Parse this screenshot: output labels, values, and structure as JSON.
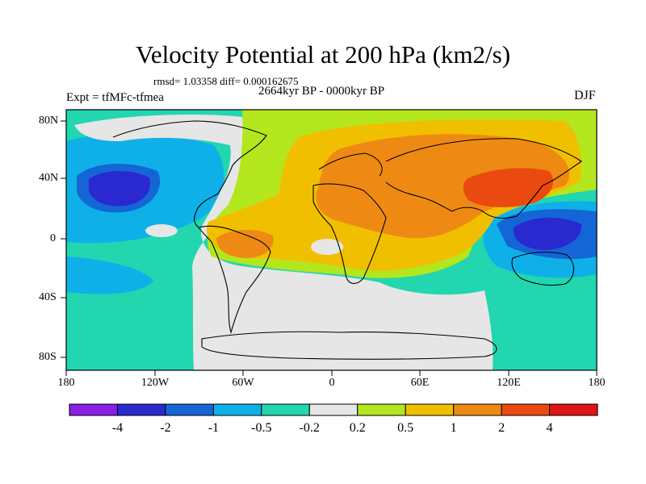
{
  "title": "Velocity Potential at 200 hPa (km2/s)",
  "stats_line": "rmsd= 1.03358 diff= 0.000162675",
  "period_line": "2664kyr BP - 0000kyr BP",
  "experiment_line": "Expt = tfMFc-tfmea",
  "season_label": "DJF",
  "map": {
    "lon_ticks": [
      "180",
      "120W",
      "60W",
      "0",
      "60E",
      "120E",
      "180"
    ],
    "lat_ticks": [
      "80N",
      "40N",
      "0",
      "40S",
      "80S"
    ]
  },
  "colorbar": {
    "labels": [
      "-4",
      "-2",
      "-1",
      "-0.5",
      "-0.2",
      "0.2",
      "0.5",
      "1",
      "2",
      "4"
    ],
    "colors": [
      "#8a1ee6",
      "#2a28cf",
      "#1466d6",
      "#0fb0e8",
      "#22d6b0",
      "#e6e6e6",
      "#b4e61e",
      "#f0c000",
      "#ee8a14",
      "#ea4a10",
      "#e01414"
    ]
  }
}
